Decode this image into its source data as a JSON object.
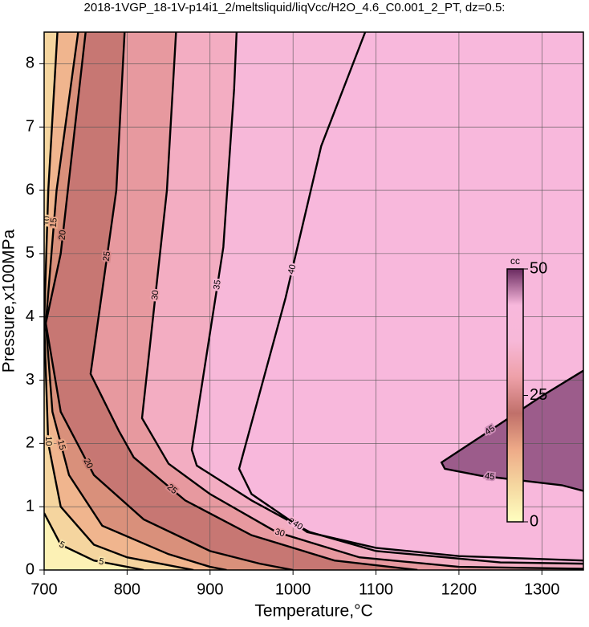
{
  "chart_data": {
    "type": "contour",
    "title": "2018-1VGP_18-1V-p14i1_2/meltsliquid/liqVcc/H2O_4.6_C0.001_2_PT, dz=0.5:",
    "x_label": "Temperature,°C",
    "y_label": "Pressure,x100MPa",
    "xlim": [
      700,
      1350
    ],
    "ylim": [
      0,
      8.5
    ],
    "xticks": [
      700,
      800,
      900,
      1000,
      1100,
      1200,
      1300
    ],
    "yticks": [
      0,
      1,
      2,
      3,
      4,
      5,
      6,
      7,
      8
    ],
    "grid": true,
    "contours": [
      {
        "level": 5,
        "x": [
          700,
          720,
          760,
          800,
          820
        ],
        "y": [
          0.9,
          0.4,
          0.15,
          0.05,
          0
        ]
      },
      {
        "level": 10,
        "x": [
          716,
          705,
          700,
          705,
          720,
          760,
          800,
          860,
          880
        ],
        "y": [
          8.5,
          6,
          3.9,
          2,
          1,
          0.4,
          0.2,
          0.05,
          0
        ]
      },
      {
        "level": 15,
        "x": [
          741,
          715,
          702,
          710,
          730,
          770,
          850,
          900,
          920
        ],
        "y": [
          8.5,
          6,
          3.9,
          2.5,
          1.5,
          0.7,
          0.25,
          0.05,
          0
        ]
      },
      {
        "level": 20,
        "x": [
          750,
          720,
          702,
          720,
          760,
          820,
          900,
          960,
          1000
        ],
        "y": [
          8.5,
          5,
          3.9,
          2.5,
          1.5,
          0.8,
          0.3,
          0.1,
          0
        ]
      },
      {
        "level": 25,
        "x": [
          797,
          787,
          756,
          790,
          808,
          870,
          950,
          1050,
          1150
        ],
        "y": [
          8.5,
          6,
          3.1,
          2.2,
          1.78,
          1.1,
          0.55,
          0.15,
          0
        ]
      },
      {
        "level": 30,
        "x": [
          859,
          848,
          818,
          850,
          900,
          980,
          1080,
          1200,
          1350
        ],
        "y": [
          8.5,
          6,
          2.4,
          1.68,
          1.2,
          0.6,
          0.2,
          0.05,
          0.02
        ]
      },
      {
        "level": 35,
        "x": [
          932,
          929,
          916,
          878,
          884,
          950,
          1020,
          1100,
          1250,
          1350
        ],
        "y": [
          8.5,
          7.6,
          5.1,
          1.9,
          1.65,
          1.1,
          0.6,
          0.3,
          0.12,
          0.1
        ]
      },
      {
        "level": 40,
        "x": [
          1087,
          1034,
          991,
          935,
          950,
          1017,
          1100,
          1200,
          1350
        ],
        "y": [
          8.5,
          6.7,
          4.3,
          1.6,
          1.2,
          0.6,
          0.35,
          0.22,
          0.15
        ]
      },
      {
        "level": 45,
        "x": [
          1350,
          1324,
          1226,
          1183,
          1179,
          1237,
          1300,
          1350
        ],
        "y": [
          1.25,
          1.34,
          1.49,
          1.6,
          1.7,
          2.2,
          2.75,
          3.15
        ]
      }
    ],
    "colorbar": {
      "label": "cc",
      "lim": [
        0,
        50
      ],
      "ticks": [
        0,
        25,
        50
      ],
      "colors": [
        "#ffffc0",
        "#f5d7a0",
        "#eeaa88",
        "#c0706a",
        "#eea0a8",
        "#f7b8d8",
        "#f8b8dc",
        "#6a2a60"
      ]
    }
  }
}
